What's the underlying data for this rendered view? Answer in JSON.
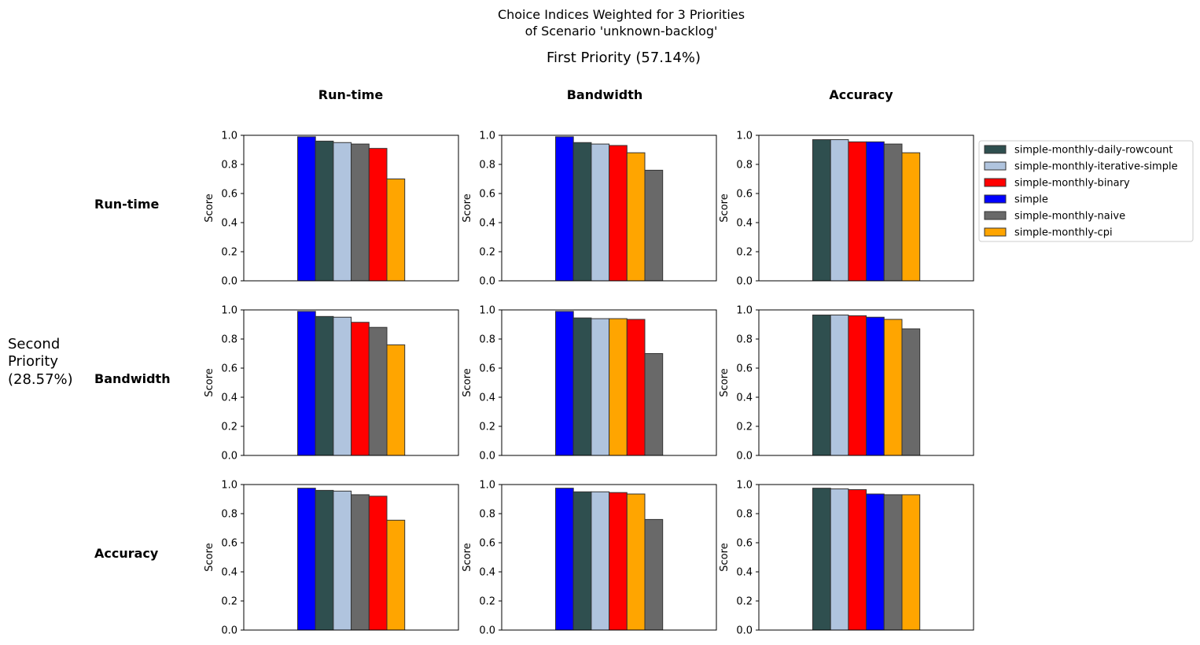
{
  "figure": {
    "title_line1": "Choice Indices Weighted for 3 Priorities",
    "title_line2": "of Scenario 'unknown-backlog'",
    "first_priority_label": "First Priority (57.14%)",
    "second_priority_label": [
      "Second",
      "Priority",
      "(28.57%)"
    ],
    "column_headers": [
      "Run-time",
      "Bandwidth",
      "Accuracy"
    ],
    "row_headers": [
      "Run-time",
      "Bandwidth",
      "Accuracy"
    ]
  },
  "legend": {
    "placement": "right of top-right panel",
    "entries": [
      {
        "name": "simple-monthly-daily-rowcount",
        "color": "#2f4f4f"
      },
      {
        "name": "simple-monthly-iterative-simple",
        "color": "#b0c4de"
      },
      {
        "name": "simple-monthly-binary",
        "color": "#ff0000"
      },
      {
        "name": "simple",
        "color": "#0000ff"
      },
      {
        "name": "simple-monthly-naive",
        "color": "#696969"
      },
      {
        "name": "simple-monthly-cpi",
        "color": "#ffa500"
      }
    ]
  },
  "chart_data": [
    {
      "type": "bar",
      "row": "Run-time",
      "col": "Run-time",
      "ylabel": "Score",
      "ylim": [
        0,
        1.0
      ],
      "yticks": [
        "0.0",
        "0.2",
        "0.4",
        "0.6",
        "0.8",
        "1.0"
      ],
      "bars": [
        {
          "series": "simple",
          "value": 0.99
        },
        {
          "series": "simple-monthly-daily-rowcount",
          "value": 0.96
        },
        {
          "series": "simple-monthly-iterative-simple",
          "value": 0.95
        },
        {
          "series": "simple-monthly-naive",
          "value": 0.94
        },
        {
          "series": "simple-monthly-binary",
          "value": 0.91
        },
        {
          "series": "simple-monthly-cpi",
          "value": 0.7
        }
      ]
    },
    {
      "type": "bar",
      "row": "Run-time",
      "col": "Bandwidth",
      "ylabel": "Score",
      "ylim": [
        0,
        1.0
      ],
      "yticks": [
        "0.0",
        "0.2",
        "0.4",
        "0.6",
        "0.8",
        "1.0"
      ],
      "bars": [
        {
          "series": "simple",
          "value": 0.99
        },
        {
          "series": "simple-monthly-daily-rowcount",
          "value": 0.95
        },
        {
          "series": "simple-monthly-iterative-simple",
          "value": 0.94
        },
        {
          "series": "simple-monthly-binary",
          "value": 0.93
        },
        {
          "series": "simple-monthly-cpi",
          "value": 0.88
        },
        {
          "series": "simple-monthly-naive",
          "value": 0.76
        }
      ]
    },
    {
      "type": "bar",
      "row": "Run-time",
      "col": "Accuracy",
      "ylabel": "Score",
      "ylim": [
        0,
        1.0
      ],
      "yticks": [
        "0.0",
        "0.2",
        "0.4",
        "0.6",
        "0.8",
        "1.0"
      ],
      "bars": [
        {
          "series": "simple-monthly-daily-rowcount",
          "value": 0.97
        },
        {
          "series": "simple-monthly-iterative-simple",
          "value": 0.97
        },
        {
          "series": "simple-monthly-binary",
          "value": 0.955
        },
        {
          "series": "simple",
          "value": 0.955
        },
        {
          "series": "simple-monthly-naive",
          "value": 0.94
        },
        {
          "series": "simple-monthly-cpi",
          "value": 0.88
        }
      ]
    },
    {
      "type": "bar",
      "row": "Bandwidth",
      "col": "Run-time",
      "ylabel": "Score",
      "ylim": [
        0,
        1.0
      ],
      "yticks": [
        "0.0",
        "0.2",
        "0.4",
        "0.6",
        "0.8",
        "1.0"
      ],
      "bars": [
        {
          "series": "simple",
          "value": 0.99
        },
        {
          "series": "simple-monthly-daily-rowcount",
          "value": 0.955
        },
        {
          "series": "simple-monthly-iterative-simple",
          "value": 0.95
        },
        {
          "series": "simple-monthly-binary",
          "value": 0.915
        },
        {
          "series": "simple-monthly-naive",
          "value": 0.88
        },
        {
          "series": "simple-monthly-cpi",
          "value": 0.76
        }
      ]
    },
    {
      "type": "bar",
      "row": "Bandwidth",
      "col": "Bandwidth",
      "ylabel": "Score",
      "ylim": [
        0,
        1.0
      ],
      "yticks": [
        "0.0",
        "0.2",
        "0.4",
        "0.6",
        "0.8",
        "1.0"
      ],
      "bars": [
        {
          "series": "simple",
          "value": 0.99
        },
        {
          "series": "simple-monthly-daily-rowcount",
          "value": 0.945
        },
        {
          "series": "simple-monthly-iterative-simple",
          "value": 0.94
        },
        {
          "series": "simple-monthly-cpi",
          "value": 0.94
        },
        {
          "series": "simple-monthly-binary",
          "value": 0.935
        },
        {
          "series": "simple-monthly-naive",
          "value": 0.7
        }
      ]
    },
    {
      "type": "bar",
      "row": "Bandwidth",
      "col": "Accuracy",
      "ylabel": "Score",
      "ylim": [
        0,
        1.0
      ],
      "yticks": [
        "0.0",
        "0.2",
        "0.4",
        "0.6",
        "0.8",
        "1.0"
      ],
      "bars": [
        {
          "series": "simple-monthly-daily-rowcount",
          "value": 0.965
        },
        {
          "series": "simple-monthly-iterative-simple",
          "value": 0.965
        },
        {
          "series": "simple-monthly-binary",
          "value": 0.96
        },
        {
          "series": "simple",
          "value": 0.95
        },
        {
          "series": "simple-monthly-cpi",
          "value": 0.935
        },
        {
          "series": "simple-monthly-naive",
          "value": 0.87
        }
      ]
    },
    {
      "type": "bar",
      "row": "Accuracy",
      "col": "Run-time",
      "ylabel": "Score",
      "ylim": [
        0,
        1.0
      ],
      "yticks": [
        "0.0",
        "0.2",
        "0.4",
        "0.6",
        "0.8",
        "1.0"
      ],
      "bars": [
        {
          "series": "simple",
          "value": 0.975
        },
        {
          "series": "simple-monthly-daily-rowcount",
          "value": 0.96
        },
        {
          "series": "simple-monthly-iterative-simple",
          "value": 0.955
        },
        {
          "series": "simple-monthly-naive",
          "value": 0.93
        },
        {
          "series": "simple-monthly-binary",
          "value": 0.92
        },
        {
          "series": "simple-monthly-cpi",
          "value": 0.755
        }
      ]
    },
    {
      "type": "bar",
      "row": "Accuracy",
      "col": "Bandwidth",
      "ylabel": "Score",
      "ylim": [
        0,
        1.0
      ],
      "yticks": [
        "0.0",
        "0.2",
        "0.4",
        "0.6",
        "0.8",
        "1.0"
      ],
      "bars": [
        {
          "series": "simple",
          "value": 0.975
        },
        {
          "series": "simple-monthly-daily-rowcount",
          "value": 0.95
        },
        {
          "series": "simple-monthly-iterative-simple",
          "value": 0.95
        },
        {
          "series": "simple-monthly-binary",
          "value": 0.945
        },
        {
          "series": "simple-monthly-cpi",
          "value": 0.935
        },
        {
          "series": "simple-monthly-naive",
          "value": 0.76
        }
      ]
    },
    {
      "type": "bar",
      "row": "Accuracy",
      "col": "Accuracy",
      "ylabel": "Score",
      "ylim": [
        0,
        1.0
      ],
      "yticks": [
        "0.0",
        "0.2",
        "0.4",
        "0.6",
        "0.8",
        "1.0"
      ],
      "bars": [
        {
          "series": "simple-monthly-daily-rowcount",
          "value": 0.975
        },
        {
          "series": "simple-monthly-iterative-simple",
          "value": 0.97
        },
        {
          "series": "simple-monthly-binary",
          "value": 0.965
        },
        {
          "series": "simple",
          "value": 0.935
        },
        {
          "series": "simple-monthly-naive",
          "value": 0.93
        },
        {
          "series": "simple-monthly-cpi",
          "value": 0.93
        }
      ]
    }
  ]
}
